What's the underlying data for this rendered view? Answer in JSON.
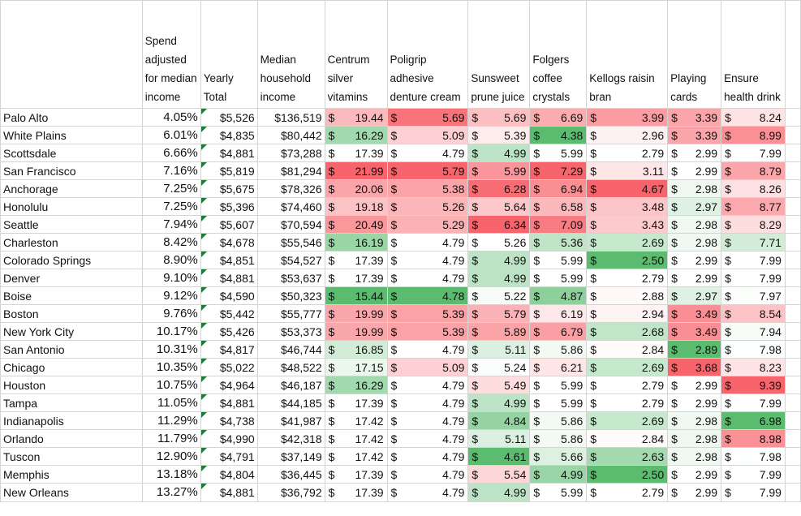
{
  "headers": {
    "city": "",
    "spend_adjusted": "Spend adjusted for median income",
    "yearly_total": "Yearly Total",
    "median_income": "Median household income",
    "centrum": "Centrum silver vitamins",
    "poligrip": "Poligrip adhesive denture cream",
    "sunsweet": "Sunsweet prune juice",
    "folgers": "Folgers coffee crystals",
    "kellogs": "Kellogs raisin bran",
    "cards": "Playing cards",
    "ensure": "Ensure health drink"
  },
  "currency_symbol": "$",
  "rows": [
    {
      "city": "Palo Alto",
      "pct": "4.05%",
      "total": "$5,526",
      "income": "$136,519",
      "centrum": "19.44",
      "poligrip": "5.69",
      "sunsweet": "5.69",
      "folgers": "6.69",
      "kellogs": "3.99",
      "cards": "3.39",
      "ensure": "8.24"
    },
    {
      "city": "White Plains",
      "pct": "6.01%",
      "total": "$4,835",
      "income": "$80,442",
      "centrum": "16.29",
      "poligrip": "5.09",
      "sunsweet": "5.39",
      "folgers": "4.38",
      "kellogs": "2.96",
      "cards": "3.39",
      "ensure": "8.99"
    },
    {
      "city": "Scottsdale",
      "pct": "6.66%",
      "total": "$4,881",
      "income": "$73,288",
      "centrum": "17.39",
      "poligrip": "4.79",
      "sunsweet": "4.99",
      "folgers": "5.99",
      "kellogs": "2.79",
      "cards": "2.99",
      "ensure": "7.99"
    },
    {
      "city": "San Francisco",
      "pct": "7.16%",
      "total": "$5,819",
      "income": "$81,294",
      "centrum": "21.99",
      "poligrip": "5.79",
      "sunsweet": "5.99",
      "folgers": "7.29",
      "kellogs": "3.11",
      "cards": "2.99",
      "ensure": "8.79"
    },
    {
      "city": "Anchorage",
      "pct": "7.25%",
      "total": "$5,675",
      "income": "$78,326",
      "centrum": "20.06",
      "poligrip": "5.38",
      "sunsweet": "6.28",
      "folgers": "6.94",
      "kellogs": "4.67",
      "cards": "2.98",
      "ensure": "8.26"
    },
    {
      "city": "Honolulu",
      "pct": "7.25%",
      "total": "$5,396",
      "income": "$74,460",
      "centrum": "19.18",
      "poligrip": "5.26",
      "sunsweet": "5.64",
      "folgers": "6.58",
      "kellogs": "3.48",
      "cards": "2.97",
      "ensure": "8.77"
    },
    {
      "city": "Seattle",
      "pct": "7.94%",
      "total": "$5,607",
      "income": "$70,594",
      "centrum": "20.49",
      "poligrip": "5.29",
      "sunsweet": "6.34",
      "folgers": "7.09",
      "kellogs": "3.43",
      "cards": "2.98",
      "ensure": "8.29"
    },
    {
      "city": "Charleston",
      "pct": "8.42%",
      "total": "$4,678",
      "income": "$55,546",
      "centrum": "16.19",
      "poligrip": "4.79",
      "sunsweet": "5.26",
      "folgers": "5.36",
      "kellogs": "2.69",
      "cards": "2.98",
      "ensure": "7.71"
    },
    {
      "city": "Colorado Springs",
      "pct": "8.90%",
      "total": "$4,851",
      "income": "$54,527",
      "centrum": "17.39",
      "poligrip": "4.79",
      "sunsweet": "4.99",
      "folgers": "5.99",
      "kellogs": "2.50",
      "cards": "2.99",
      "ensure": "7.99"
    },
    {
      "city": "Denver",
      "pct": "9.10%",
      "total": "$4,881",
      "income": "$53,637",
      "centrum": "17.39",
      "poligrip": "4.79",
      "sunsweet": "4.99",
      "folgers": "5.99",
      "kellogs": "2.79",
      "cards": "2.99",
      "ensure": "7.99"
    },
    {
      "city": "Boise",
      "pct": "9.12%",
      "total": "$4,590",
      "income": "$50,323",
      "centrum": "15.44",
      "poligrip": "4.78",
      "sunsweet": "5.22",
      "folgers": "4.87",
      "kellogs": "2.88",
      "cards": "2.97",
      "ensure": "7.97"
    },
    {
      "city": "Boston",
      "pct": "9.76%",
      "total": "$5,442",
      "income": "$55,777",
      "centrum": "19.99",
      "poligrip": "5.39",
      "sunsweet": "5.79",
      "folgers": "6.19",
      "kellogs": "2.94",
      "cards": "3.49",
      "ensure": "8.54"
    },
    {
      "city": "New York City",
      "pct": "10.17%",
      "total": "$5,426",
      "income": "$53,373",
      "centrum": "19.99",
      "poligrip": "5.39",
      "sunsweet": "5.89",
      "folgers": "6.79",
      "kellogs": "2.68",
      "cards": "3.49",
      "ensure": "7.94"
    },
    {
      "city": "San Antonio",
      "pct": "10.31%",
      "total": "$4,817",
      "income": "$46,744",
      "centrum": "16.85",
      "poligrip": "4.79",
      "sunsweet": "5.11",
      "folgers": "5.86",
      "kellogs": "2.84",
      "cards": "2.89",
      "ensure": "7.98"
    },
    {
      "city": "Chicago",
      "pct": "10.35%",
      "total": "$5,022",
      "income": "$48,522",
      "centrum": "17.15",
      "poligrip": "5.09",
      "sunsweet": "5.24",
      "folgers": "6.21",
      "kellogs": "2.69",
      "cards": "3.68",
      "ensure": "8.23"
    },
    {
      "city": "Houston",
      "pct": "10.75%",
      "total": "$4,964",
      "income": "$46,187",
      "centrum": "16.29",
      "poligrip": "4.79",
      "sunsweet": "5.49",
      "folgers": "5.99",
      "kellogs": "2.79",
      "cards": "2.99",
      "ensure": "9.39"
    },
    {
      "city": "Tampa",
      "pct": "11.05%",
      "total": "$4,881",
      "income": "$44,185",
      "centrum": "17.39",
      "poligrip": "4.79",
      "sunsweet": "4.99",
      "folgers": "5.99",
      "kellogs": "2.79",
      "cards": "2.99",
      "ensure": "7.99"
    },
    {
      "city": "Indianapolis",
      "pct": "11.29%",
      "total": "$4,738",
      "income": "$41,987",
      "centrum": "17.42",
      "poligrip": "4.79",
      "sunsweet": "4.84",
      "folgers": "5.86",
      "kellogs": "2.69",
      "cards": "2.98",
      "ensure": "6.98"
    },
    {
      "city": "Orlando",
      "pct": "11.79%",
      "total": "$4,990",
      "income": "$42,318",
      "centrum": "17.42",
      "poligrip": "4.79",
      "sunsweet": "5.11",
      "folgers": "5.86",
      "kellogs": "2.84",
      "cards": "2.98",
      "ensure": "8.98"
    },
    {
      "city": "Tuscon",
      "pct": "12.90%",
      "total": "$4,791",
      "income": "$37,149",
      "centrum": "17.42",
      "poligrip": "4.79",
      "sunsweet": "4.61",
      "folgers": "5.66",
      "kellogs": "2.63",
      "cards": "2.98",
      "ensure": "7.98"
    },
    {
      "city": "Memphis",
      "pct": "13.18%",
      "total": "$4,804",
      "income": "$36,445",
      "centrum": "17.39",
      "poligrip": "4.79",
      "sunsweet": "5.54",
      "folgers": "4.99",
      "kellogs": "2.50",
      "cards": "2.99",
      "ensure": "7.99"
    },
    {
      "city": "New Orleans",
      "pct": "13.27%",
      "total": "$4,881",
      "income": "$36,792",
      "centrum": "17.39",
      "poligrip": "4.79",
      "sunsweet": "4.99",
      "folgers": "5.99",
      "kellogs": "2.79",
      "cards": "2.99",
      "ensure": "7.99"
    }
  ],
  "color_scale": {
    "low": "#5bbb6f",
    "mid": "#ffffff",
    "high": "#f7646b"
  }
}
